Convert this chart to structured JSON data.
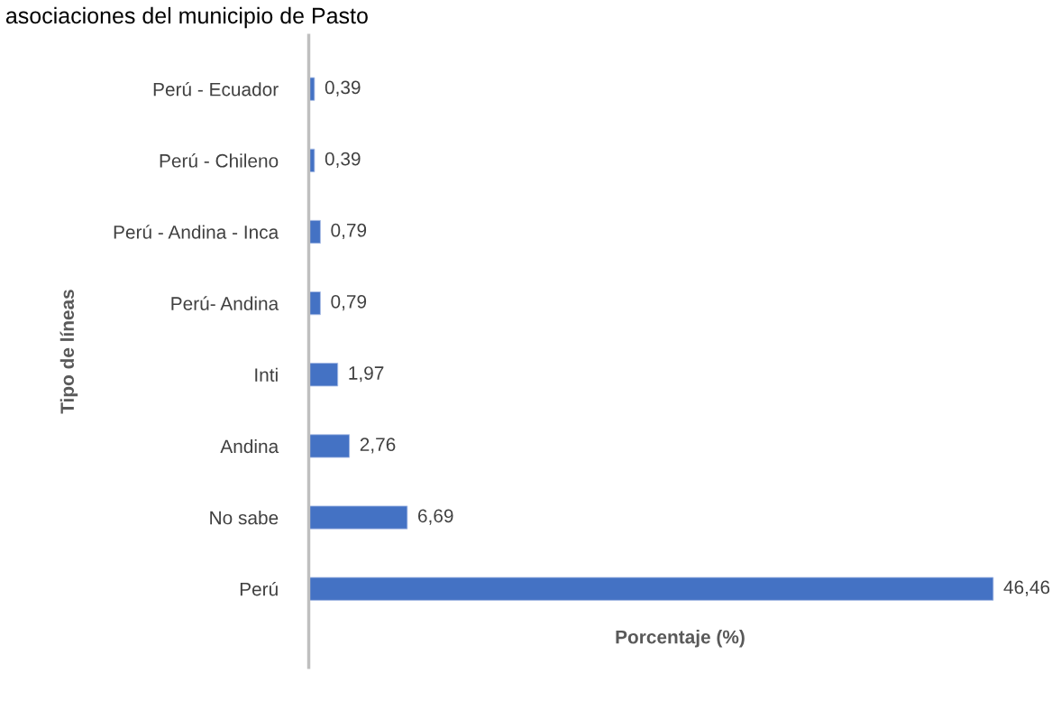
{
  "chart_data": {
    "type": "bar",
    "orientation": "horizontal",
    "title": "asociaciones del municipio de Pasto",
    "xlabel": "Porcentaje (%)",
    "ylabel": "Tipo de líneas",
    "categories": [
      "Perú - Ecuador",
      "Perú - Chileno",
      "Perú - Andina - Inca",
      "Perú- Andina",
      "Inti",
      "Andina",
      "No sabe",
      "Perú"
    ],
    "values": [
      0.39,
      0.39,
      0.79,
      0.79,
      1.97,
      2.76,
      6.69,
      46.46
    ],
    "value_labels": [
      "0,39",
      "0,39",
      "0,79",
      "0,79",
      "1,97",
      "2,76",
      "6,69",
      "46,46"
    ],
    "color": "#4472c4",
    "grid": false,
    "legend": false
  }
}
